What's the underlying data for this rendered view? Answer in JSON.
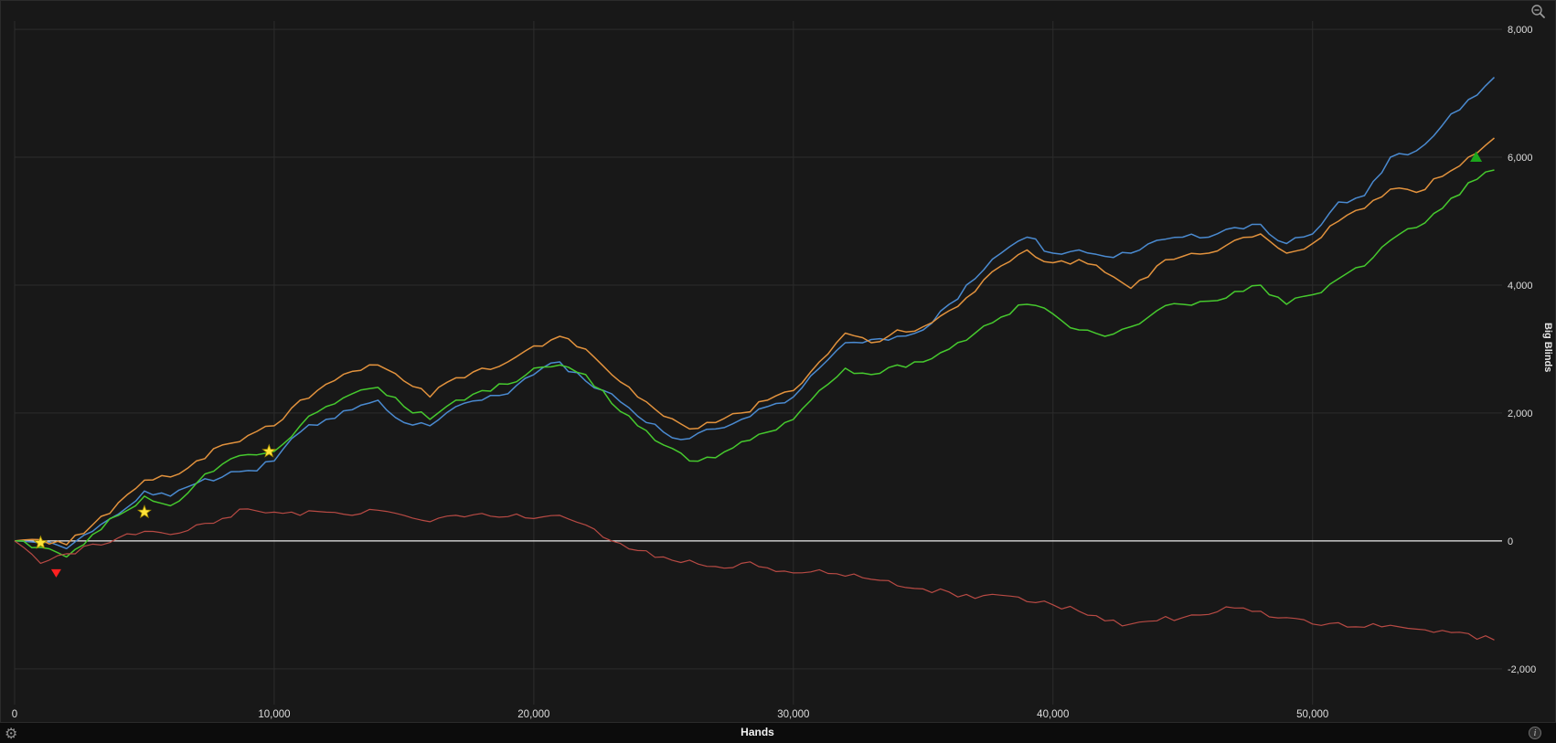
{
  "icons": {
    "gear_glyph": "⚙",
    "info_glyph": "i"
  },
  "chart_data": {
    "type": "line",
    "title": "",
    "xlabel": "Hands",
    "ylabel": "Big Blinds",
    "xlim": [
      0,
      57300
    ],
    "ylim": [
      -2560,
      8130
    ],
    "x_step": 1000,
    "x_ticks": [
      0,
      10000,
      20000,
      30000,
      40000,
      50000
    ],
    "x_tick_labels": [
      "0",
      "10,000",
      "20,000",
      "30,000",
      "40,000",
      "50,000"
    ],
    "y_ticks": [
      -2000,
      0,
      2000,
      4000,
      6000,
      8000
    ],
    "y_tick_labels": [
      "-2,000",
      "0",
      "2,000",
      "4,000",
      "6,000",
      "8,000"
    ],
    "grid": true,
    "legend": "none",
    "colors": {
      "background": "#181818",
      "grid": "#2c2c2c",
      "zero_line": "#ebebeb",
      "tick_text": "#dedede",
      "blue": "#4a8ad0",
      "orange": "#e2923d",
      "green": "#46c92e",
      "red": "#b84a44",
      "star": "#ffe33a",
      "marker_red": "#ff2020",
      "marker_green": "#1ca51c"
    },
    "series": [
      {
        "name": "blue",
        "color": "#4a8ad0",
        "width": 1.5,
        "values": [
          0,
          -30,
          -120,
          150,
          420,
          780,
          700,
          900,
          1000,
          1100,
          1250,
          1700,
          1900,
          2050,
          2200,
          1850,
          1800,
          2100,
          2200,
          2300,
          2600,
          2800,
          2500,
          2300,
          1950,
          1700,
          1600,
          1750,
          1900,
          2100,
          2250,
          2700,
          3100,
          3150,
          3200,
          3300,
          3700,
          4100,
          4500,
          4750,
          4500,
          4550,
          4450,
          4500,
          4700,
          4750,
          4750,
          4900,
          4950,
          4650,
          4800,
          5300,
          5400,
          6000,
          6100,
          6500,
          6900,
          7250
        ]
      },
      {
        "name": "orange",
        "color": "#e2923d",
        "width": 1.5,
        "values": [
          0,
          20,
          -60,
          250,
          600,
          950,
          1000,
          1250,
          1500,
          1650,
          1800,
          2200,
          2450,
          2650,
          2750,
          2500,
          2250,
          2550,
          2700,
          2800,
          3050,
          3200,
          3000,
          2600,
          2250,
          1950,
          1750,
          1850,
          2000,
          2200,
          2350,
          2800,
          3250,
          3100,
          3300,
          3350,
          3600,
          3900,
          4300,
          4550,
          4350,
          4400,
          4200,
          3950,
          4300,
          4450,
          4500,
          4700,
          4800,
          4500,
          4650,
          5000,
          5200,
          5500,
          5450,
          5700,
          6000,
          6300
        ]
      },
      {
        "name": "green",
        "color": "#46c92e",
        "width": 1.5,
        "values": [
          0,
          -100,
          -250,
          100,
          400,
          700,
          550,
          900,
          1200,
          1350,
          1400,
          1800,
          2100,
          2300,
          2400,
          2100,
          1900,
          2200,
          2350,
          2450,
          2700,
          2750,
          2600,
          2150,
          1800,
          1500,
          1250,
          1300,
          1550,
          1700,
          1900,
          2350,
          2700,
          2600,
          2750,
          2800,
          3000,
          3250,
          3500,
          3700,
          3550,
          3300,
          3200,
          3350,
          3600,
          3700,
          3750,
          3900,
          4000,
          3700,
          3850,
          4100,
          4300,
          4700,
          4900,
          5200,
          5600,
          5800
        ]
      },
      {
        "name": "red",
        "color": "#b84a44",
        "width": 1.2,
        "values": [
          0,
          -350,
          -200,
          -50,
          50,
          150,
          100,
          250,
          350,
          500,
          450,
          400,
          450,
          400,
          480,
          400,
          300,
          400,
          430,
          380,
          350,
          400,
          250,
          0,
          -150,
          -250,
          -300,
          -400,
          -350,
          -420,
          -500,
          -450,
          -550,
          -600,
          -700,
          -750,
          -800,
          -900,
          -850,
          -950,
          -1000,
          -1100,
          -1250,
          -1300,
          -1250,
          -1200,
          -1150,
          -1050,
          -1100,
          -1200,
          -1300,
          -1280,
          -1350,
          -1320,
          -1380,
          -1400,
          -1450,
          -1550
        ]
      }
    ],
    "markers": [
      {
        "shape": "star",
        "color": "#ffe33a",
        "x": 1000,
        "y": -30
      },
      {
        "shape": "star",
        "color": "#ffe33a",
        "x": 5000,
        "y": 450
      },
      {
        "shape": "star",
        "color": "#ffe33a",
        "x": 9800,
        "y": 1400
      },
      {
        "shape": "triangle-down",
        "color": "#ff2020",
        "x": 1600,
        "y": -500
      },
      {
        "shape": "triangle-up",
        "color": "#1ca51c",
        "x": 56300,
        "y": 6000
      }
    ]
  }
}
